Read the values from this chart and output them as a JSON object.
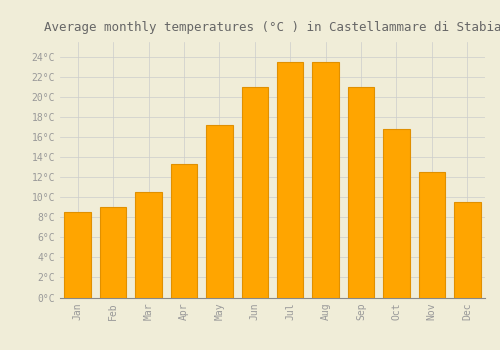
{
  "months": [
    "Jan",
    "Feb",
    "Mar",
    "Apr",
    "May",
    "Jun",
    "Jul",
    "Aug",
    "Sep",
    "Oct",
    "Nov",
    "Dec"
  ],
  "temperatures": [
    8.5,
    9.0,
    10.5,
    13.3,
    17.2,
    21.0,
    23.5,
    23.5,
    21.0,
    16.8,
    12.5,
    9.5
  ],
  "bar_color": "#FFA500",
  "bar_edge_color": "#E09000",
  "background_color": "#F0EDD8",
  "grid_color": "#CCCCCC",
  "title": "Average monthly temperatures (°C ) in Castellammare di Stabia",
  "title_fontsize": 9,
  "ylabel_ticks": [
    0,
    2,
    4,
    6,
    8,
    10,
    12,
    14,
    16,
    18,
    20,
    22,
    24
  ],
  "ylim": [
    0,
    25.5
  ],
  "tick_label_color": "#999999",
  "font_family": "monospace"
}
